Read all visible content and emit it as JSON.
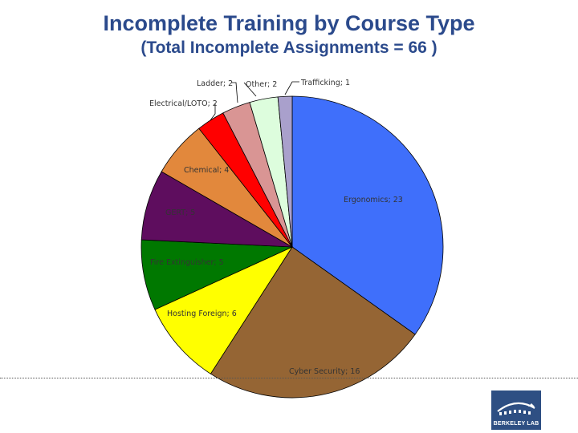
{
  "chart_data": {
    "type": "pie",
    "title": "Incomplete Training by Course Type",
    "subtitle": "(Total Incomplete Assignments = 66 )",
    "slices": [
      {
        "label": "Ergonomics; 23",
        "name": "Ergonomics",
        "value": 23,
        "color": "#3f6ffb"
      },
      {
        "label": "Cyber Security; 16",
        "name": "Cyber Security",
        "value": 16,
        "color": "#956534"
      },
      {
        "label": "Hosting Foreign; 6",
        "name": "Hosting Foreign",
        "value": 6,
        "color": "#ffff00"
      },
      {
        "label": "Fire Extinguisher; 5",
        "name": "Fire Extinguisher",
        "value": 5,
        "color": "#007800"
      },
      {
        "label": "GERT; 5",
        "name": "GERT",
        "value": 5,
        "color": "#5e0d5e"
      },
      {
        "label": "Chemical; 4",
        "name": "Chemical",
        "value": 4,
        "color": "#e2883c"
      },
      {
        "label": "Electrical/LOTO; 2",
        "name": "Electrical/LOTO",
        "value": 2,
        "color": "#ff0000"
      },
      {
        "label": "Ladder; 2",
        "name": "Ladder",
        "value": 2,
        "color": "#d99594"
      },
      {
        "label": "Other; 2",
        "name": "Other",
        "value": 2,
        "color": "#ddfddd"
      },
      {
        "label": "Trafficking; 1",
        "name": "Trafficking",
        "value": 1,
        "color": "#a9a0cc"
      }
    ]
  },
  "logo": {
    "text": "BERKELEY LAB"
  }
}
